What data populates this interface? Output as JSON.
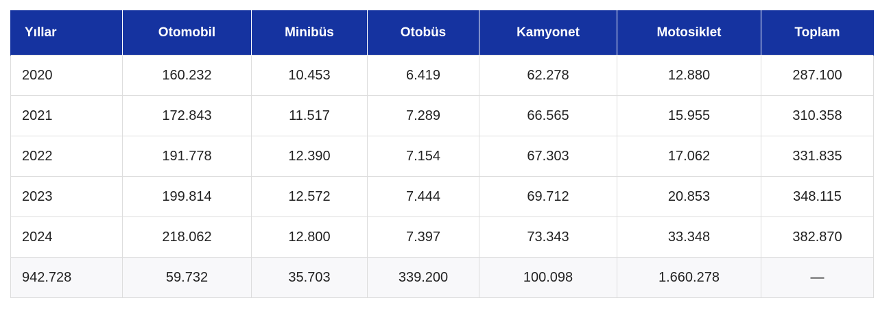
{
  "table": {
    "headers": [
      "Yıllar",
      "Otomobil",
      "Minibüs",
      "Otobüs",
      "Kamyonet",
      "Motosiklet",
      "Toplam"
    ],
    "rows": [
      [
        "2020",
        "160.232",
        "10.453",
        "6.419",
        "62.278",
        "12.880",
        "287.100"
      ],
      [
        "2021",
        "172.843",
        "11.517",
        "7.289",
        "66.565",
        "15.955",
        "310.358"
      ],
      [
        "2022",
        "191.778",
        "12.390",
        "7.154",
        "67.303",
        "17.062",
        "331.835"
      ],
      [
        "2023",
        "199.814",
        "12.572",
        "7.444",
        "69.712",
        "20.853",
        "348.115"
      ],
      [
        "2024",
        "218.062",
        "12.800",
        "7.397",
        "73.343",
        "33.348",
        "382.870"
      ],
      [
        "942.728",
        "59.732",
        "35.703",
        "339.200",
        "100.098",
        "1.660.278",
        "—"
      ]
    ]
  },
  "colors": {
    "header_bg": "#1533a0",
    "header_text": "#ffffff",
    "border": "#dddddd"
  }
}
